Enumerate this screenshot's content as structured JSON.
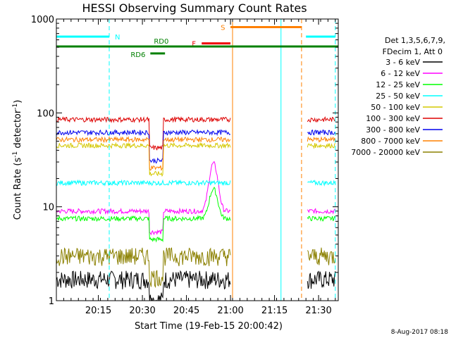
{
  "chart_data": {
    "type": "line",
    "title": "HESSI Observing Summary Count Rates",
    "xlabel": "Start Time (19-Feb-15 20:00:42)",
    "ylabel_main": "Count Rate (s",
    "ylabel_sup1": "-1",
    "ylabel_mid": " detector",
    "ylabel_sup2": "-1",
    "ylabel_end": ")",
    "y_scale": "log",
    "ylim": [
      1,
      1000
    ],
    "xlim_minutes": [
      0,
      96
    ],
    "y_ticks": [
      "1",
      "10",
      "100",
      "1000"
    ],
    "x_ticks": [
      {
        "label": "20:15",
        "min": 14.3
      },
      {
        "label": "20:30",
        "min": 29.3
      },
      {
        "label": "20:45",
        "min": 44.3
      },
      {
        "label": "21:00",
        "min": 59.3
      },
      {
        "label": "21:15",
        "min": 74.3
      },
      {
        "label": "21:30",
        "min": 89.3
      }
    ],
    "legend_header": [
      "Det 1,3,5,6,7,9,",
      "FDecim 1, Att 0"
    ],
    "series": [
      {
        "name": "3 - 6 keV",
        "color": "#000000",
        "level": 1.7,
        "flare": 0
      },
      {
        "name": "6 - 12 keV",
        "color": "#ff00ff",
        "level": 9.0,
        "flare": 20
      },
      {
        "name": "12 - 25 keV",
        "color": "#00ff00",
        "level": 7.5,
        "flare": 8
      },
      {
        "name": "25 - 50 keV",
        "color": "#00ffff",
        "level": 18,
        "flare": 0
      },
      {
        "name": "50 - 100 keV",
        "color": "#d4c800",
        "level": 45,
        "flare": 0
      },
      {
        "name": "100 - 300 keV",
        "color": "#dd0000",
        "level": 85,
        "flare": 0
      },
      {
        "name": "300 - 800 keV",
        "color": "#0000ee",
        "level": 62,
        "flare": 0
      },
      {
        "name": "800 - 7000 keV",
        "color": "#ff8000",
        "level": 52,
        "flare": 0
      },
      {
        "name": "7000 - 20000 keV",
        "color": "#8b8000",
        "level": 3.0,
        "flare": 0
      }
    ],
    "gaps_minutes": [
      [
        59.3,
        85.5
      ]
    ],
    "night_lines_minutes": [
      0,
      18,
      76.5,
      95
    ],
    "saa_lines_minutes": [
      60,
      83.5
    ],
    "bars": [
      {
        "label": "N",
        "color": "#00ffff",
        "y": 650,
        "segments": [
          [
            0,
            18
          ],
          [
            85,
            95
          ]
        ]
      },
      {
        "label": "S",
        "color": "#ff8000",
        "y": 820,
        "segments": [
          [
            59.3,
            83.5
          ]
        ]
      },
      {
        "label": "F",
        "color": "#ee0000",
        "y": 550,
        "segments": [
          [
            49.5,
            59.3
          ]
        ]
      },
      {
        "label": "RD0",
        "color": "#008000",
        "y": 510,
        "segments": [
          [
            0,
            96
          ]
        ]
      },
      {
        "label": "RD6",
        "color": "#008000",
        "y": 430,
        "segments": [
          [
            32,
            37
          ]
        ]
      }
    ],
    "footer": "8-Aug-2017 08:18"
  }
}
